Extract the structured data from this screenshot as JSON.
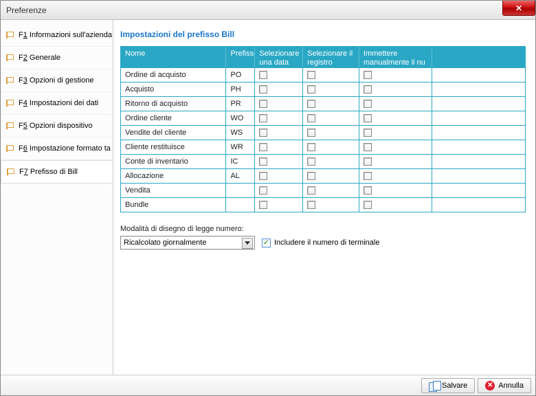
{
  "window": {
    "title": "Preferenze"
  },
  "sidebar": {
    "items": [
      {
        "key": "F1",
        "label": "Informazioni sull'azienda"
      },
      {
        "key": "F2",
        "label": "Generale"
      },
      {
        "key": "F3",
        "label": "Opzioni di gestione"
      },
      {
        "key": "F4",
        "label": "Impostazioni dei dati"
      },
      {
        "key": "F5",
        "label": "Opzioni dispositivo"
      },
      {
        "key": "F6",
        "label": "Impostazione formato ta"
      },
      {
        "key": "F7",
        "label": "Prefisso di Bill"
      }
    ],
    "active_index": 6
  },
  "main": {
    "title": "Impostazioni del prefisso Bill",
    "columns": {
      "name": "Nome",
      "prefix": "Prefisso",
      "c1": "Selezionare una data",
      "c2": "Selezionare il registro",
      "c3": "Immettere manualmente il nu"
    },
    "rows": [
      {
        "name": "Ordine di acquisto",
        "prefix": "PO"
      },
      {
        "name": "Acquisto",
        "prefix": "PH"
      },
      {
        "name": "Ritorno di acquisto",
        "prefix": "PR"
      },
      {
        "name": "Ordine cliente",
        "prefix": "WO"
      },
      {
        "name": "Vendite del cliente",
        "prefix": "WS"
      },
      {
        "name": "Cliente restituisce",
        "prefix": "WR"
      },
      {
        "name": "Conte di inventario",
        "prefix": "IC"
      },
      {
        "name": "Allocazione",
        "prefix": "AL"
      },
      {
        "name": "Vendita",
        "prefix": ""
      },
      {
        "name": "Bundle",
        "prefix": ""
      }
    ],
    "mode_label": "Modalità di disegno di legge numero:",
    "mode_value": "Ricalcolato giornalmente",
    "include_terminal_label": "Includere il numero di terminale",
    "include_terminal_checked": true
  },
  "footer": {
    "save": "Salvare",
    "cancel": "Annulla"
  },
  "colors": {
    "accent": "#2aa7c4",
    "link": "#1a77c9",
    "close": "#c11"
  }
}
